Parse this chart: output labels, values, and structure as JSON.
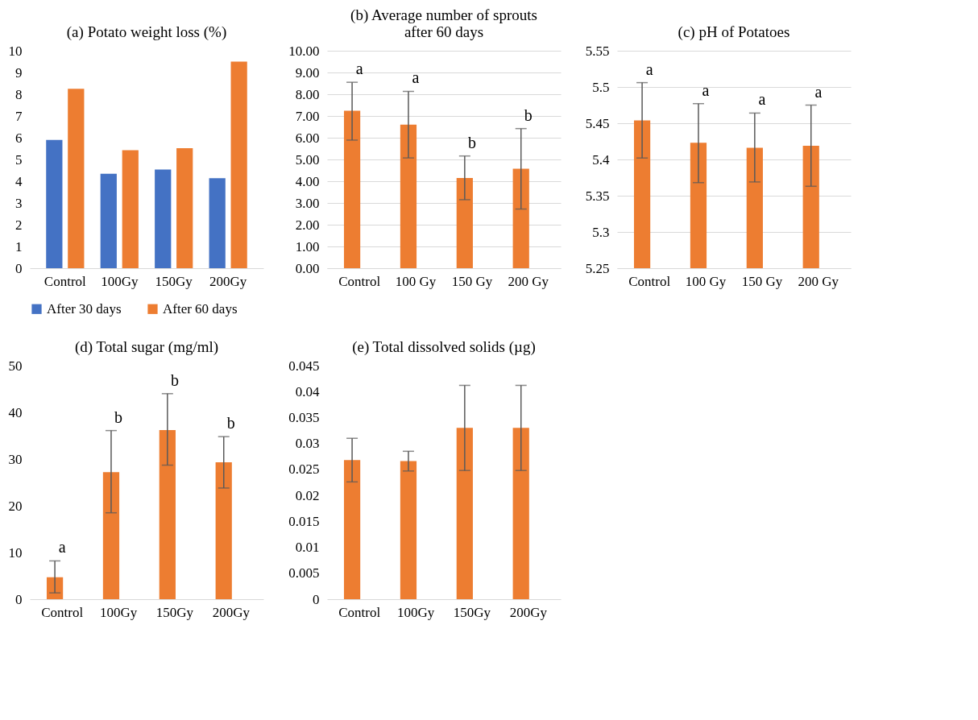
{
  "chart_data": [
    {
      "type": "bar",
      "title": "(a) Potato weight loss (%)",
      "categories": [
        "Control",
        "100Gy",
        "150Gy",
        "200Gy"
      ],
      "series": [
        {
          "name": "After 30 days",
          "color": "#4472c4",
          "values": [
            5.9,
            4.34,
            4.54,
            4.14
          ]
        },
        {
          "name": "After 60 days",
          "color": "#ed7d31",
          "values": [
            8.25,
            5.43,
            5.52,
            9.5
          ]
        }
      ],
      "ylim": [
        0,
        10
      ],
      "yticks": [
        0,
        1,
        2,
        3,
        4,
        5,
        6,
        7,
        8,
        9,
        10
      ],
      "grid": false,
      "legend": "bottom"
    },
    {
      "type": "bar",
      "title": "(b) Average number of sprouts after 60 days",
      "categories": [
        "Control",
        "100 Gy",
        "150 Gy",
        "200 Gy"
      ],
      "series": [
        {
          "color": "#ed7d31",
          "values": [
            7.24,
            6.6,
            4.15,
            4.57
          ],
          "errors": [
            [
              5.89,
              8.55
            ],
            [
              5.07,
              8.13
            ],
            [
              3.15,
              5.16
            ],
            [
              2.72,
              6.42
            ]
          ]
        }
      ],
      "ylim": [
        0,
        10
      ],
      "yticks": [
        {
          "value": 0,
          "label": "0.00"
        },
        {
          "value": 1,
          "label": "1.00"
        },
        {
          "value": 2,
          "label": "2.00"
        },
        {
          "value": 3,
          "label": "3.00"
        },
        {
          "value": 4,
          "label": "4.00"
        },
        {
          "value": 5,
          "label": "5.00"
        },
        {
          "value": 6,
          "label": "6.00"
        },
        {
          "value": 7,
          "label": "7.00"
        },
        {
          "value": 8,
          "label": "8.00"
        },
        {
          "value": 9,
          "label": "9.00"
        },
        {
          "value": 10,
          "label": "10.00"
        }
      ],
      "grid": "y",
      "annotations": [
        "a",
        "a",
        "b",
        "b"
      ]
    },
    {
      "type": "bar",
      "title": "(c) pH of Potatoes",
      "categories": [
        "Control",
        "100 Gy",
        "150 Gy",
        "200 Gy"
      ],
      "series": [
        {
          "color": "#ed7d31",
          "values": [
            5.454,
            5.423,
            5.416,
            5.419
          ],
          "errors": [
            [
              5.402,
              5.506
            ],
            [
              5.368,
              5.477
            ],
            [
              5.369,
              5.464
            ],
            [
              5.363,
              5.475
            ]
          ]
        }
      ],
      "ylim": [
        5.25,
        5.55
      ],
      "yticks": [
        5.25,
        5.3,
        5.35,
        5.4,
        5.45,
        5.5,
        5.55
      ],
      "grid": "y",
      "annotations": [
        "a",
        "a",
        "a",
        "a"
      ]
    },
    {
      "type": "bar",
      "title": "(d) Total sugar (mg/ml)",
      "categories": [
        "Control",
        "100Gy",
        "150Gy",
        "200Gy"
      ],
      "series": [
        {
          "color": "#ed7d31",
          "values": [
            4.7,
            27.2,
            36.2,
            29.3
          ],
          "errors": [
            [
              1.35,
              8.2
            ],
            [
              18.5,
              36.1
            ],
            [
              28.7,
              44.0
            ],
            [
              23.8,
              34.8
            ]
          ]
        }
      ],
      "ylim": [
        0,
        50
      ],
      "yticks": [
        0,
        10,
        20,
        30,
        40,
        50
      ],
      "grid": false,
      "annotations": [
        "a",
        "b",
        "b",
        "b"
      ]
    },
    {
      "type": "bar",
      "title": "(e) Total dissolved solids (µg)",
      "categories": [
        "Control",
        "100Gy",
        "150Gy",
        "200Gy"
      ],
      "series": [
        {
          "color": "#ed7d31",
          "values": [
            0.0268,
            0.0266,
            0.033,
            0.033
          ],
          "errors": [
            [
              0.0226,
              0.031
            ],
            [
              0.0247,
              0.0285
            ],
            [
              0.0248,
              0.0412
            ],
            [
              0.0248,
              0.0412
            ]
          ]
        }
      ],
      "ylim": [
        0,
        0.045
      ],
      "yticks": [
        0,
        0.005,
        0.01,
        0.015,
        0.02,
        0.025,
        0.03,
        0.035,
        0.04,
        0.045
      ],
      "grid": false
    }
  ]
}
